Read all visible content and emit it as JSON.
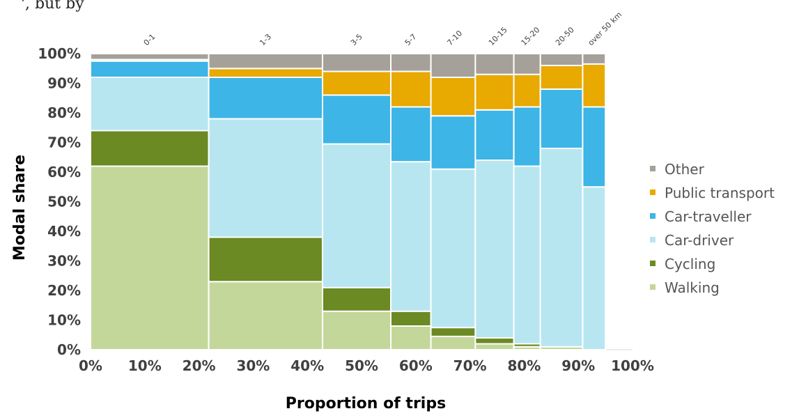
{
  "top_text": "', but by",
  "chart_data": {
    "type": "bar",
    "subtype": "marimekko-stacked-100",
    "title": "",
    "xlabel": "Proportion of trips",
    "ylabel": "Modal share",
    "xlim": [
      0,
      100
    ],
    "ylim": [
      0,
      100
    ],
    "x_ticks": [
      "0%",
      "10%",
      "20%",
      "30%",
      "40%",
      "50%",
      "60%",
      "70%",
      "80%",
      "90%",
      "100%"
    ],
    "y_ticks": [
      "0%",
      "10%",
      "20%",
      "30%",
      "40%",
      "50%",
      "60%",
      "70%",
      "80%",
      "90%",
      "100%"
    ],
    "legend_position": "right",
    "categories": [
      "0-1",
      "1-3",
      "3-5",
      "5-7",
      "7-10",
      "10-15",
      "15-20",
      "20-50",
      "over 50 km"
    ],
    "widths_percent": [
      21.8,
      21.0,
      12.6,
      7.4,
      8.2,
      7.1,
      4.9,
      7.8,
      4.2
    ],
    "series": [
      {
        "name": "Walking",
        "color": "#c4d79b",
        "values": [
          62,
          23,
          13,
          8,
          4.5,
          2,
          1,
          1,
          0
        ]
      },
      {
        "name": "Cycling",
        "color": "#6b8a23",
        "values": [
          12,
          15,
          8,
          5,
          3,
          2,
          1,
          0,
          0
        ]
      },
      {
        "name": "Car-driver",
        "color": "#b7e6f1",
        "values": [
          18,
          40,
          48.5,
          50.5,
          53.5,
          60,
          60,
          67,
          55
        ]
      },
      {
        "name": "Car-traveller",
        "color": "#3db5e6",
        "values": [
          5.5,
          14,
          16.5,
          18.5,
          18,
          17,
          20,
          20,
          27
        ]
      },
      {
        "name": "Public transport",
        "color": "#e8a900",
        "values": [
          0.5,
          3,
          8,
          12,
          13,
          12,
          11,
          8,
          14.5
        ]
      },
      {
        "name": "Other",
        "color": "#a6a09a",
        "values": [
          2,
          5,
          6,
          6,
          8,
          7,
          7,
          4,
          3.5
        ]
      }
    ]
  }
}
